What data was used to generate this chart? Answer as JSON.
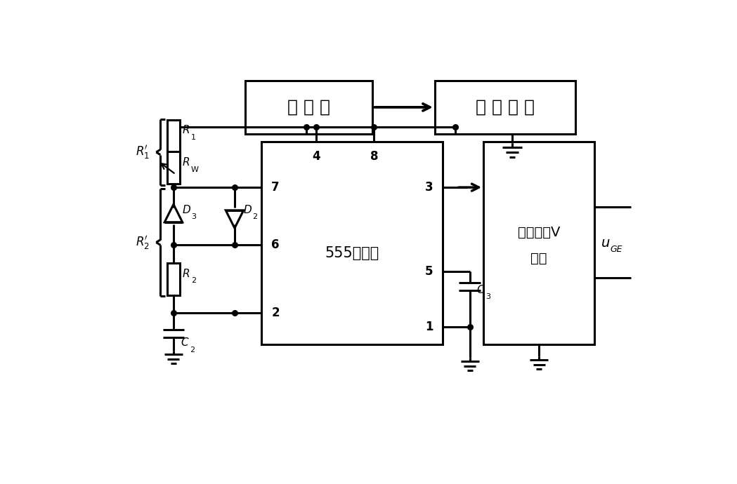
{
  "bg_color": "#ffffff",
  "lw": 2.2,
  "fig_w": 10.49,
  "fig_h": 6.9,
  "dpi": 100,
  "charger_label": "充 电 器",
  "dc_label": "直 流 电 源",
  "timer_label": "555定时器",
  "driver_label1": "开关器件V",
  "driver_label2": "驱动",
  "uGE": "u",
  "uGE_sub": "GE",
  "R1_label": "R",
  "R1_sub": "1",
  "Rw_label": "R",
  "Rw_sub": "W",
  "D3_label": "D",
  "D3_sub": "3",
  "D2_label": "D",
  "D2_sub": "2",
  "R2_label": "R",
  "R2_sub": "2",
  "C2_label": "C",
  "C2_sub": "2",
  "C3_label": "C",
  "C3_sub": "3",
  "R1p_label": "R",
  "R1p_sub": "1",
  "R2p_label": "R",
  "R2p_sub": "2"
}
